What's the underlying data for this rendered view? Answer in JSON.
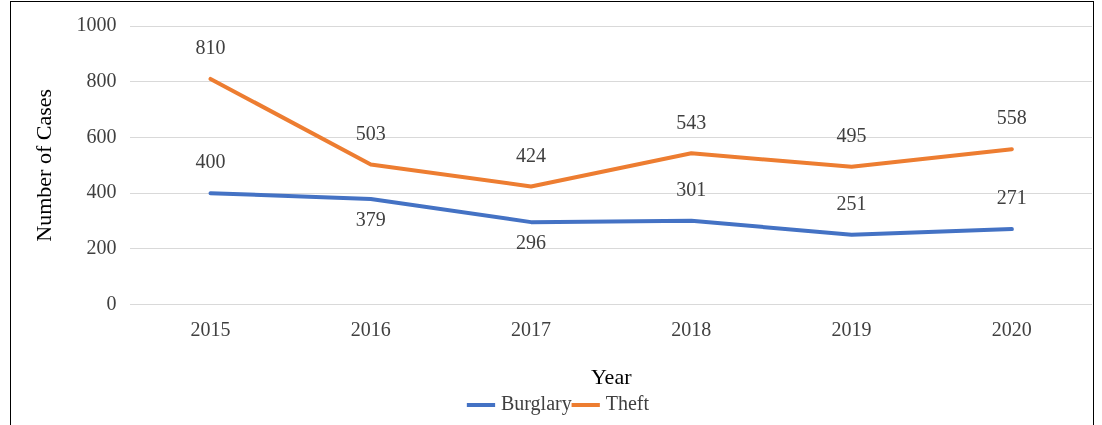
{
  "chart_data": {
    "type": "line",
    "xlabel": "Year",
    "ylabel": "Number of Cases",
    "categories": [
      "2015",
      "2016",
      "2017",
      "2018",
      "2019",
      "2020"
    ],
    "series": [
      {
        "name": "Burglary",
        "color": "#4472c4",
        "values": [
          400,
          379,
          296,
          301,
          251,
          271
        ]
      },
      {
        "name": "Theft",
        "color": "#ed7d31",
        "values": [
          810,
          503,
          424,
          543,
          495,
          558
        ]
      }
    ],
    "ylim": [
      0,
      1000
    ],
    "yticks": [
      0,
      200,
      400,
      600,
      800,
      1000
    ],
    "grid": "y",
    "legend": "bottom",
    "data_labels": true,
    "marker": "none",
    "line_style": "solid"
  }
}
